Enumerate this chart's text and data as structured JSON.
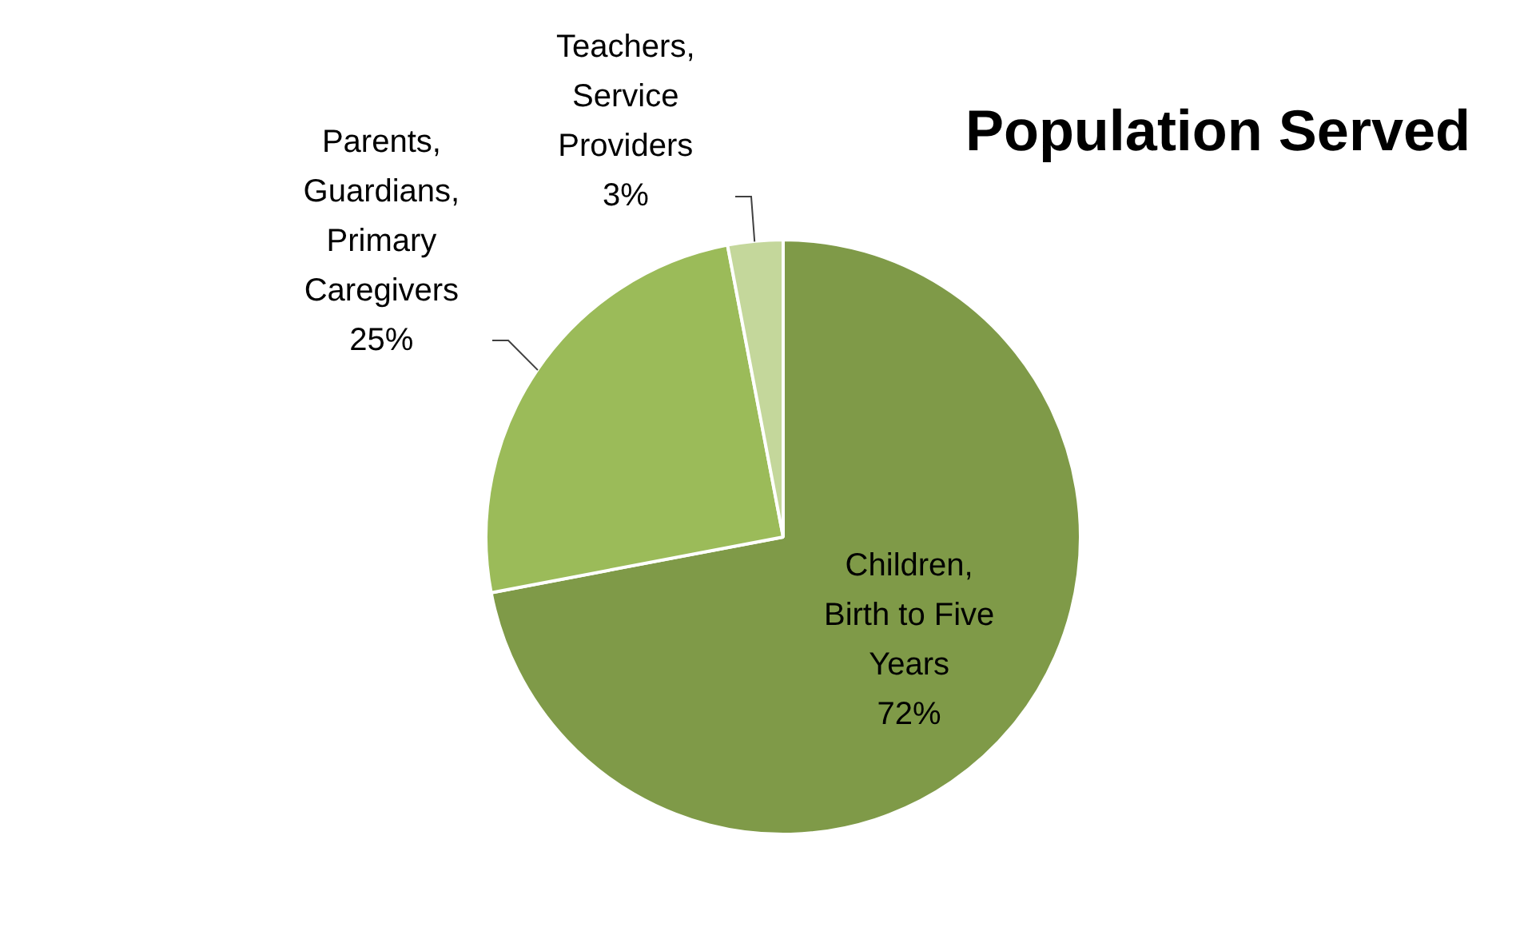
{
  "chart_data": {
    "type": "pie",
    "title": "Population Served",
    "categories": [
      "Children, Birth to Five Years",
      "Parents, Guardians, Primary Caregivers",
      "Teachers, Service Providers"
    ],
    "values": [
      72,
      25,
      3
    ],
    "colors": [
      "#7f9a48",
      "#9bbb59",
      "#c4d79b"
    ],
    "value_labels": [
      "72%",
      "25%",
      "3%"
    ],
    "legend": false
  }
}
